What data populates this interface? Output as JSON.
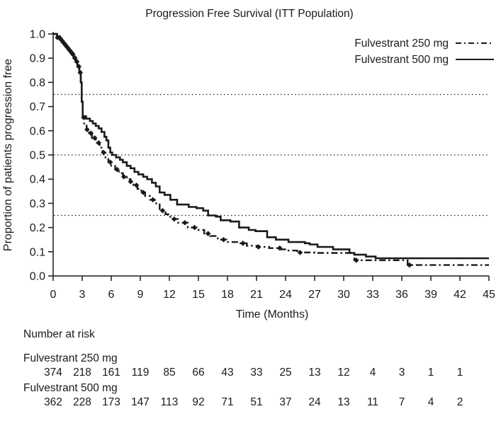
{
  "title": "Progression Free Survival (ITT Population)",
  "colors": {
    "ink": "#1a1a1a",
    "background": "#ffffff"
  },
  "legend": [
    {
      "label": "Fulvestrant 250 mg",
      "line_style": "dash-dot"
    },
    {
      "label": "Fulvestrant 500 mg",
      "line_style": "solid"
    }
  ],
  "risk_table": {
    "heading": "Number at risk",
    "months": [
      0,
      3,
      6,
      9,
      12,
      15,
      18,
      21,
      24,
      27,
      30,
      33,
      36,
      39,
      42
    ],
    "groups": [
      {
        "label": "Fulvestrant 250 mg",
        "counts": [
          374,
          218,
          161,
          119,
          85,
          66,
          43,
          33,
          25,
          13,
          12,
          4,
          3,
          1,
          1
        ]
      },
      {
        "label": "Fulvestrant 500 mg",
        "counts": [
          362,
          228,
          173,
          147,
          113,
          92,
          71,
          51,
          37,
          24,
          13,
          11,
          7,
          4,
          2
        ]
      }
    ]
  },
  "chart_data": {
    "type": "line",
    "subtype": "kaplan-meier-step",
    "title": "Progression Free Survival (ITT Population)",
    "xlabel": "Time (Months)",
    "ylabel": "Proportion of patients progression free",
    "xlim": [
      0,
      45
    ],
    "ylim": [
      0.0,
      1.0
    ],
    "xticks": [
      0,
      3,
      6,
      9,
      12,
      15,
      18,
      21,
      24,
      27,
      30,
      33,
      36,
      39,
      42,
      45
    ],
    "yticks": [
      0.0,
      0.1,
      0.2,
      0.3,
      0.4,
      0.5,
      0.6,
      0.7,
      0.8,
      0.9,
      1.0
    ],
    "grid_y_dotted": [
      0.25,
      0.5,
      0.75
    ],
    "legend_position": "top-right",
    "series": [
      {
        "name": "Fulvestrant 250 mg",
        "style": "dash-dot",
        "censor_marker": "diamond",
        "steps": [
          [
            0,
            1.0
          ],
          [
            0.4,
            0.985
          ],
          [
            0.7,
            0.975
          ],
          [
            0.9,
            0.965
          ],
          [
            1.1,
            0.955
          ],
          [
            1.3,
            0.945
          ],
          [
            1.5,
            0.935
          ],
          [
            1.7,
            0.925
          ],
          [
            1.9,
            0.915
          ],
          [
            2.1,
            0.9
          ],
          [
            2.3,
            0.885
          ],
          [
            2.5,
            0.865
          ],
          [
            2.7,
            0.84
          ],
          [
            2.85,
            0.8
          ],
          [
            2.95,
            0.72
          ],
          [
            3.05,
            0.655
          ],
          [
            3.2,
            0.625
          ],
          [
            3.45,
            0.605
          ],
          [
            3.7,
            0.59
          ],
          [
            4.0,
            0.57
          ],
          [
            4.4,
            0.55
          ],
          [
            4.8,
            0.53
          ],
          [
            5.1,
            0.51
          ],
          [
            5.4,
            0.49
          ],
          [
            5.7,
            0.47
          ],
          [
            6.0,
            0.455
          ],
          [
            6.4,
            0.44
          ],
          [
            6.8,
            0.425
          ],
          [
            7.2,
            0.41
          ],
          [
            7.6,
            0.4
          ],
          [
            8.0,
            0.39
          ],
          [
            8.3,
            0.375
          ],
          [
            8.7,
            0.36
          ],
          [
            9.1,
            0.345
          ],
          [
            9.5,
            0.33
          ],
          [
            10.0,
            0.315
          ],
          [
            10.5,
            0.3
          ],
          [
            11.0,
            0.27
          ],
          [
            11.6,
            0.255
          ],
          [
            12.1,
            0.235
          ],
          [
            12.9,
            0.22
          ],
          [
            13.9,
            0.2
          ],
          [
            14.8,
            0.19
          ],
          [
            15.6,
            0.175
          ],
          [
            16.2,
            0.165
          ],
          [
            17.0,
            0.15
          ],
          [
            17.9,
            0.14
          ],
          [
            19.0,
            0.135
          ],
          [
            20.0,
            0.125
          ],
          [
            21.0,
            0.12
          ],
          [
            22.3,
            0.115
          ],
          [
            23.5,
            0.11
          ],
          [
            24.3,
            0.105
          ],
          [
            25.2,
            0.097
          ],
          [
            27.0,
            0.095
          ],
          [
            31.1,
            0.065
          ],
          [
            36.6,
            0.045
          ],
          [
            45,
            0.045
          ]
        ],
        "censor_months": [
          0.45,
          0.65,
          0.85,
          1.05,
          1.25,
          1.45,
          1.65,
          1.85,
          2.05,
          2.25,
          2.45,
          2.65,
          2.8,
          3.15,
          3.5,
          3.9,
          4.3,
          4.7,
          5.2,
          5.9,
          6.6,
          7.3,
          8.0,
          8.6,
          9.3,
          10.3,
          11.3,
          12.5,
          13.6,
          14.6,
          16.0,
          17.6,
          19.6,
          21.2,
          23.4,
          25.5,
          31.3,
          36.8
        ]
      },
      {
        "name": "Fulvestrant 500 mg",
        "style": "solid",
        "steps": [
          [
            0,
            1.0
          ],
          [
            0.4,
            0.99
          ],
          [
            0.7,
            0.98
          ],
          [
            0.9,
            0.97
          ],
          [
            1.1,
            0.96
          ],
          [
            1.3,
            0.95
          ],
          [
            1.5,
            0.94
          ],
          [
            1.7,
            0.93
          ],
          [
            1.9,
            0.92
          ],
          [
            2.1,
            0.905
          ],
          [
            2.3,
            0.89
          ],
          [
            2.5,
            0.87
          ],
          [
            2.7,
            0.845
          ],
          [
            2.85,
            0.8
          ],
          [
            2.95,
            0.72
          ],
          [
            3.05,
            0.66
          ],
          [
            3.4,
            0.65
          ],
          [
            3.8,
            0.64
          ],
          [
            4.1,
            0.63
          ],
          [
            4.4,
            0.62
          ],
          [
            4.7,
            0.61
          ],
          [
            5.0,
            0.595
          ],
          [
            5.3,
            0.575
          ],
          [
            5.5,
            0.56
          ],
          [
            5.7,
            0.53
          ],
          [
            5.9,
            0.51
          ],
          [
            6.1,
            0.5
          ],
          [
            6.5,
            0.49
          ],
          [
            6.9,
            0.48
          ],
          [
            7.2,
            0.47
          ],
          [
            7.6,
            0.455
          ],
          [
            8.0,
            0.445
          ],
          [
            8.4,
            0.43
          ],
          [
            8.8,
            0.42
          ],
          [
            9.3,
            0.41
          ],
          [
            9.7,
            0.4
          ],
          [
            10.2,
            0.385
          ],
          [
            10.6,
            0.37
          ],
          [
            11.0,
            0.345
          ],
          [
            11.5,
            0.335
          ],
          [
            12.1,
            0.315
          ],
          [
            12.8,
            0.295
          ],
          [
            14.0,
            0.285
          ],
          [
            14.8,
            0.28
          ],
          [
            15.5,
            0.27
          ],
          [
            16.0,
            0.25
          ],
          [
            16.8,
            0.245
          ],
          [
            17.3,
            0.23
          ],
          [
            18.3,
            0.225
          ],
          [
            19.2,
            0.2
          ],
          [
            20.2,
            0.19
          ],
          [
            20.9,
            0.185
          ],
          [
            22.1,
            0.16
          ],
          [
            23.0,
            0.15
          ],
          [
            24.3,
            0.14
          ],
          [
            26.0,
            0.135
          ],
          [
            26.5,
            0.13
          ],
          [
            27.3,
            0.12
          ],
          [
            28.9,
            0.11
          ],
          [
            30.6,
            0.095
          ],
          [
            31.1,
            0.088
          ],
          [
            32.3,
            0.08
          ],
          [
            33.3,
            0.073
          ],
          [
            45,
            0.073
          ]
        ],
        "censor_months": []
      }
    ]
  }
}
